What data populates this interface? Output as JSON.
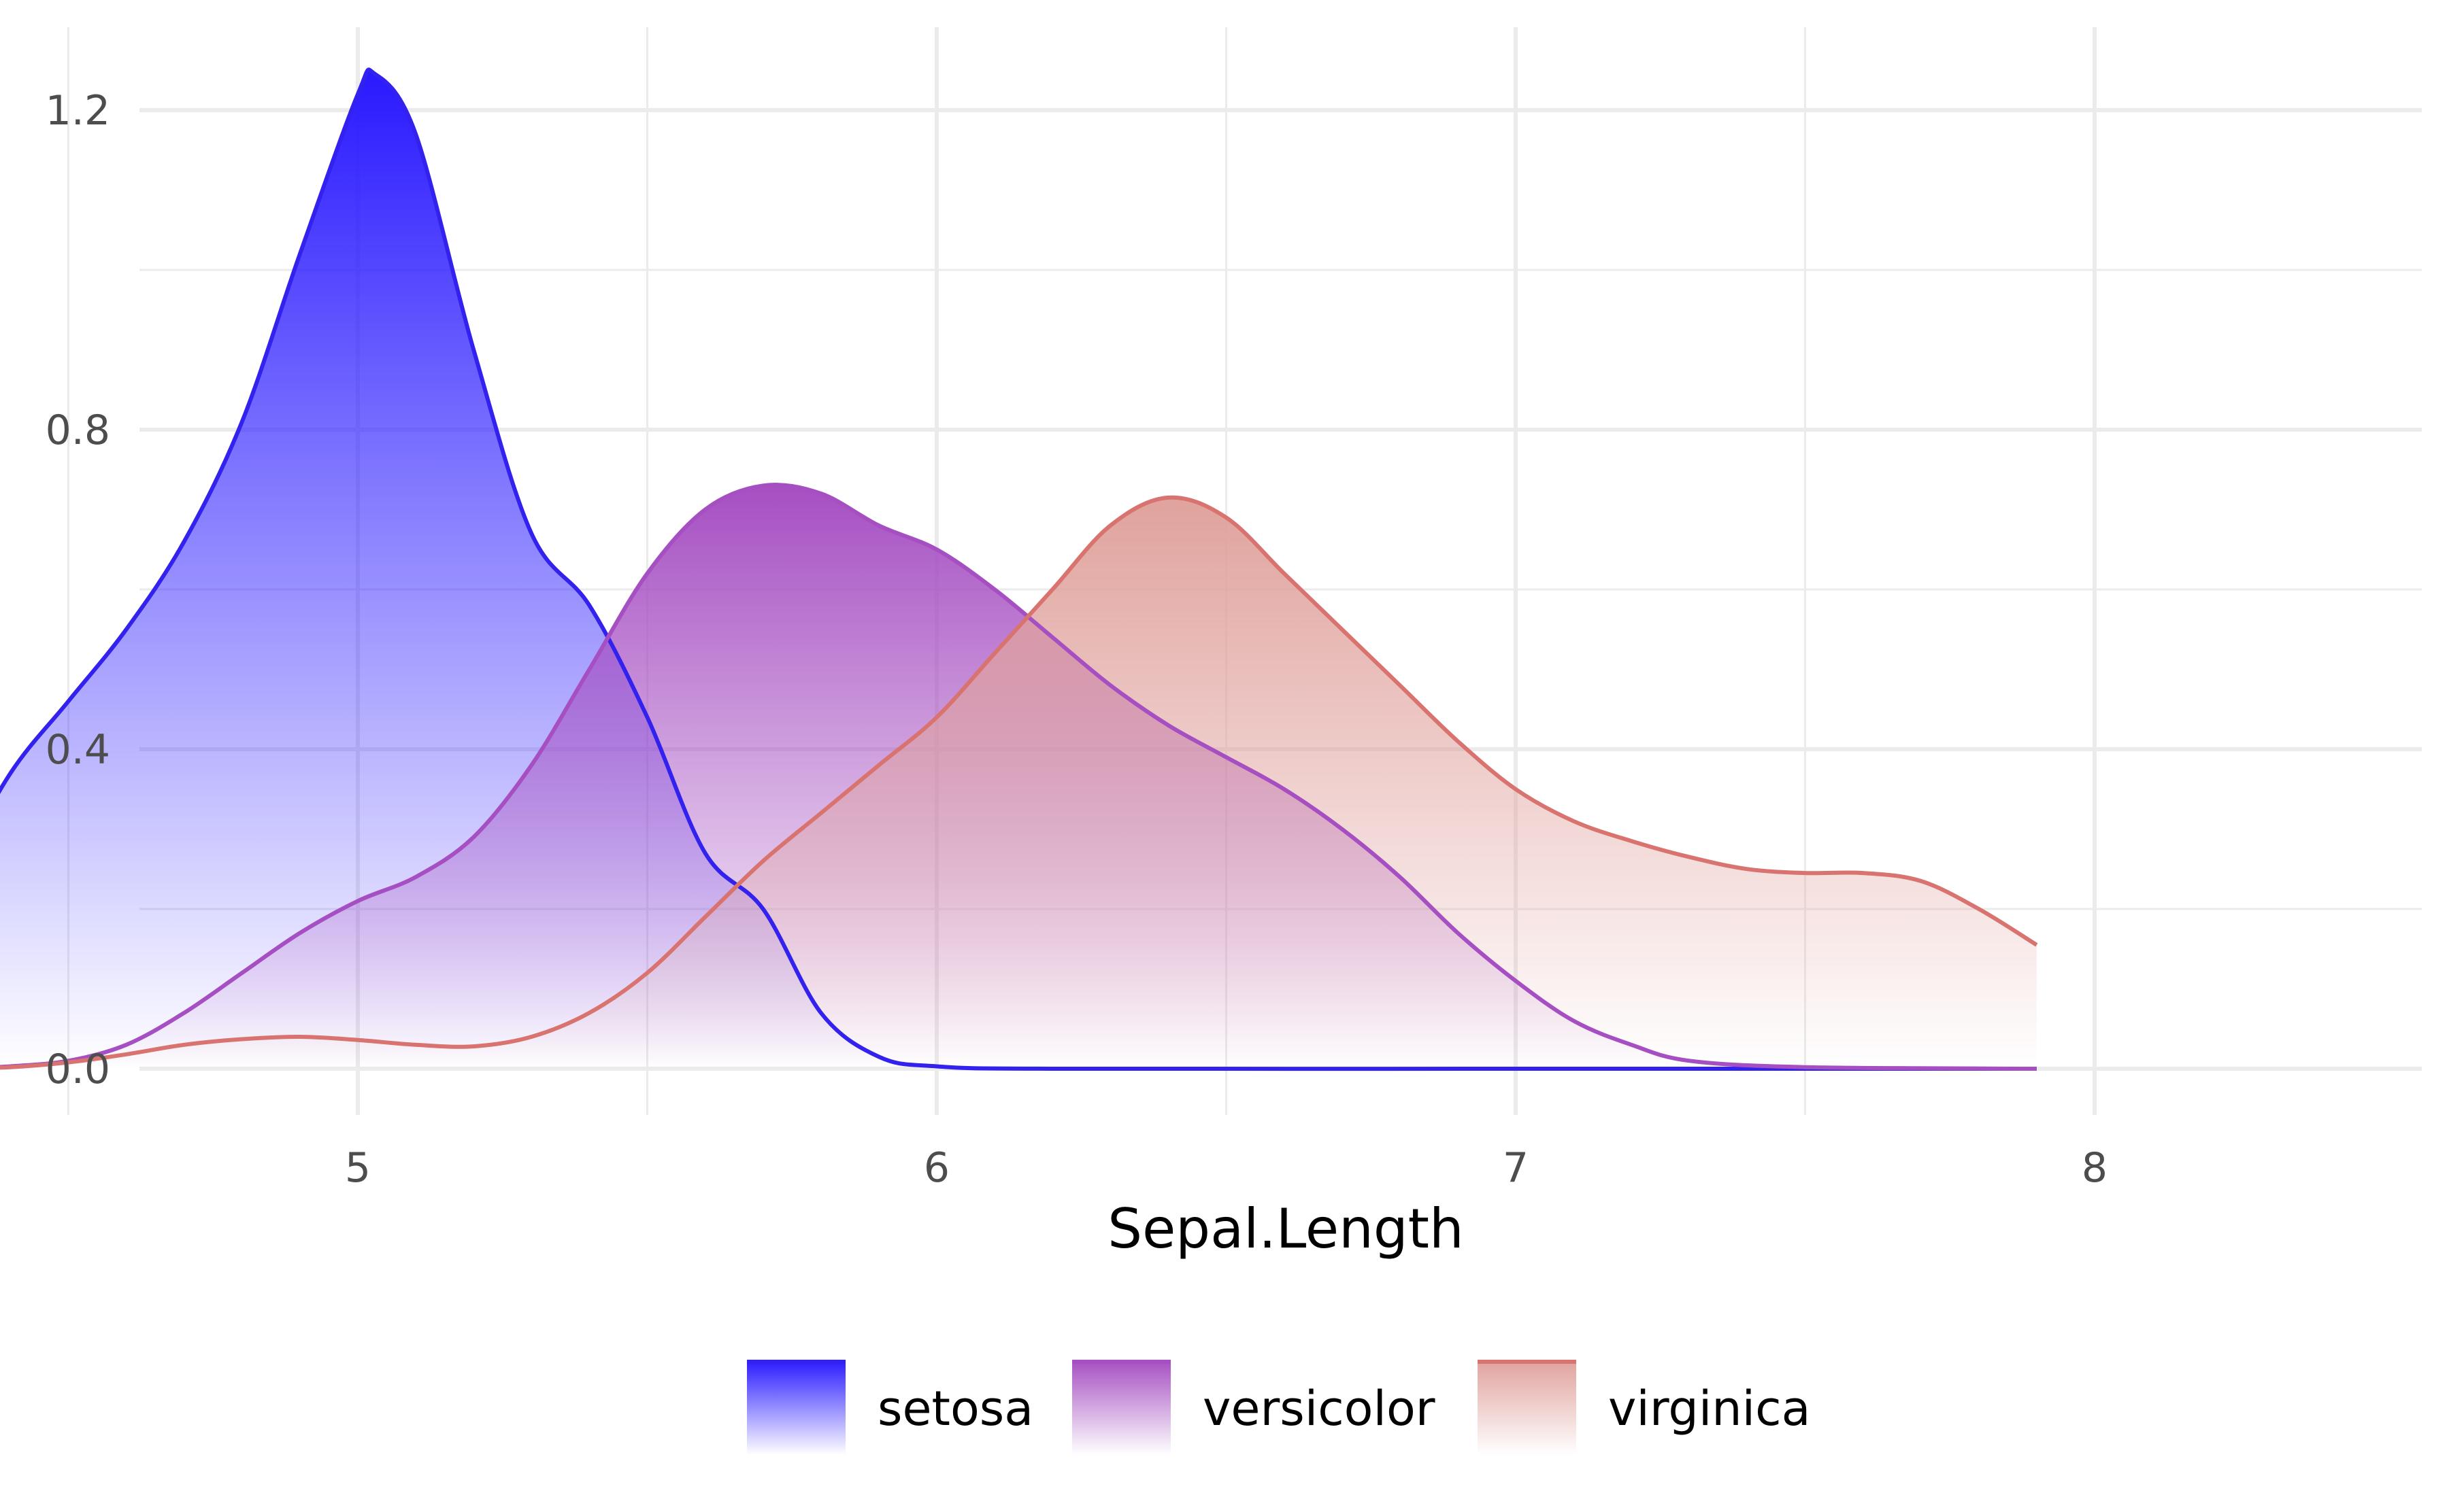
{
  "chart_data": {
    "type": "area",
    "subtype": "density",
    "title": "",
    "xlabel": "Sepal.Length",
    "ylabel": "",
    "xlim": [
      4.3,
      7.9
    ],
    "ylim": [
      0,
      1.25
    ],
    "x_ticks": [
      5,
      6,
      7,
      8
    ],
    "x_tick_labels": [
      "5",
      "6",
      "7",
      "8"
    ],
    "y_ticks": [
      0.0,
      0.4,
      0.8,
      1.2
    ],
    "y_tick_labels": [
      "0.0",
      "0.4",
      "0.8",
      "1.2"
    ],
    "grid": true,
    "legend": "bottom",
    "fill": "vertical gradient, solid at curve peak fading to transparent at 0",
    "series": [
      {
        "name": "setosa",
        "color": "#3322ee",
        "fill_top": "#2a1aff",
        "points": [
          [
            4.3,
            0.24
          ],
          [
            4.4,
            0.37
          ],
          [
            4.5,
            0.46
          ],
          [
            4.6,
            0.55
          ],
          [
            4.7,
            0.66
          ],
          [
            4.8,
            0.81
          ],
          [
            4.9,
            1.02
          ],
          [
            5.0,
            1.22
          ],
          [
            5.03,
            1.245
          ],
          [
            5.1,
            1.17
          ],
          [
            5.2,
            0.9
          ],
          [
            5.3,
            0.67
          ],
          [
            5.4,
            0.58
          ],
          [
            5.5,
            0.44
          ],
          [
            5.6,
            0.27
          ],
          [
            5.7,
            0.2
          ],
          [
            5.8,
            0.07
          ],
          [
            5.9,
            0.015
          ],
          [
            6.0,
            0.003
          ],
          [
            6.2,
            0.0
          ],
          [
            7.0,
            0.0
          ],
          [
            7.9,
            0.0
          ]
        ]
      },
      {
        "name": "versicolor",
        "color": "#a64fc2",
        "fill_top": "#a64fc2",
        "points": [
          [
            4.3,
            0.0
          ],
          [
            4.4,
            0.003
          ],
          [
            4.5,
            0.01
          ],
          [
            4.6,
            0.03
          ],
          [
            4.7,
            0.07
          ],
          [
            4.8,
            0.12
          ],
          [
            4.9,
            0.17
          ],
          [
            5.0,
            0.21
          ],
          [
            5.1,
            0.24
          ],
          [
            5.2,
            0.29
          ],
          [
            5.3,
            0.38
          ],
          [
            5.4,
            0.5
          ],
          [
            5.5,
            0.62
          ],
          [
            5.6,
            0.7
          ],
          [
            5.7,
            0.73
          ],
          [
            5.8,
            0.72
          ],
          [
            5.9,
            0.68
          ],
          [
            6.0,
            0.65
          ],
          [
            6.1,
            0.6
          ],
          [
            6.2,
            0.54
          ],
          [
            6.3,
            0.48
          ],
          [
            6.4,
            0.43
          ],
          [
            6.5,
            0.39
          ],
          [
            6.6,
            0.35
          ],
          [
            6.7,
            0.3
          ],
          [
            6.8,
            0.24
          ],
          [
            6.9,
            0.17
          ],
          [
            7.0,
            0.11
          ],
          [
            7.1,
            0.06
          ],
          [
            7.2,
            0.03
          ],
          [
            7.3,
            0.01
          ],
          [
            7.5,
            0.002
          ],
          [
            7.9,
            0.0
          ]
        ]
      },
      {
        "name": "virginica",
        "color": "#d9736f",
        "fill_top": "#e0a29d",
        "points": [
          [
            4.3,
            0.0
          ],
          [
            4.4,
            0.002
          ],
          [
            4.5,
            0.008
          ],
          [
            4.6,
            0.018
          ],
          [
            4.7,
            0.03
          ],
          [
            4.8,
            0.037
          ],
          [
            4.9,
            0.04
          ],
          [
            5.0,
            0.036
          ],
          [
            5.1,
            0.03
          ],
          [
            5.2,
            0.028
          ],
          [
            5.3,
            0.04
          ],
          [
            5.4,
            0.07
          ],
          [
            5.5,
            0.12
          ],
          [
            5.6,
            0.19
          ],
          [
            5.7,
            0.26
          ],
          [
            5.8,
            0.32
          ],
          [
            5.9,
            0.38
          ],
          [
            6.0,
            0.44
          ],
          [
            6.1,
            0.52
          ],
          [
            6.2,
            0.6
          ],
          [
            6.3,
            0.68
          ],
          [
            6.4,
            0.715
          ],
          [
            6.5,
            0.69
          ],
          [
            6.6,
            0.62
          ],
          [
            6.7,
            0.55
          ],
          [
            6.8,
            0.48
          ],
          [
            6.9,
            0.41
          ],
          [
            7.0,
            0.35
          ],
          [
            7.1,
            0.31
          ],
          [
            7.2,
            0.285
          ],
          [
            7.3,
            0.265
          ],
          [
            7.4,
            0.25
          ],
          [
            7.5,
            0.245
          ],
          [
            7.6,
            0.245
          ],
          [
            7.7,
            0.235
          ],
          [
            7.8,
            0.2
          ],
          [
            7.9,
            0.155
          ]
        ]
      }
    ]
  }
}
